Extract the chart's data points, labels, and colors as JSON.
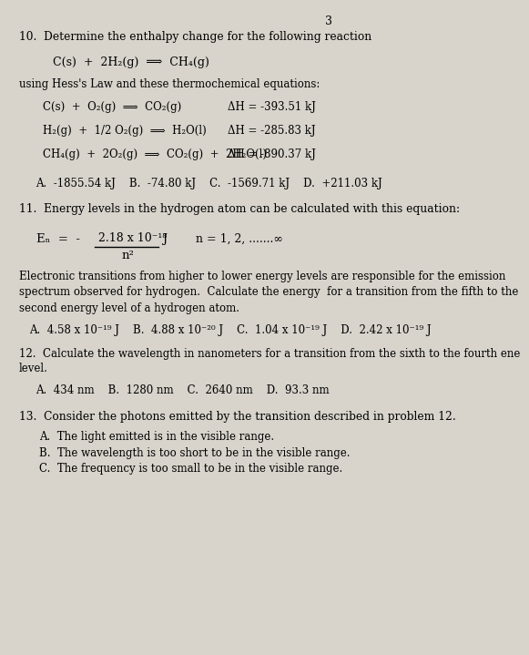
{
  "bg_color": "#d8d4cc",
  "page_num": "3",
  "q10_title": "10.  Determine the enthalpy change for the following reaction",
  "q10_reaction": "C(s)  +  2H₂(g)  ⟹  CH₄(g)",
  "q10_using": "using Hess's Law and these thermochemical equations:",
  "q10_eq1": "C(s)  +  O₂(g)  ⟹  CO₂(g)",
  "q10_eq1_dH": "ΔH = -393.51 kJ",
  "q10_eq2": "H₂(g)  +  1/2 O₂(g)  ⟹  H₂O(l)",
  "q10_eq2_dH": "ΔH = -285.83 kJ",
  "q10_eq3": "CH₄(g)  +  2O₂(g)  ⟹  CO₂(g)  +  2H₂O(l)",
  "q10_eq3_dH": "ΔH = -890.37 kJ",
  "q10_answers": "A.  -1855.54 kJ    B.  -74.80 kJ    C.  -1569.71 kJ    D.  +211.03 kJ",
  "q11_title": "11.  Energy levels in the hydrogen atom can be calculated with this equation:",
  "q11_formula_left": "Eₙ  =  -",
  "q11_formula_num": "2.18 x 10⁻¹⁸",
  "q11_formula_denom": "n²",
  "q11_formula_right": "J        n = 1, 2, .......∞",
  "q11_desc1": "Electronic transitions from higher to lower energy levels are responsible for the emission",
  "q11_desc2": "spectrum observed for hydrogen.  Calculate the energy  for a transition from the fifth to the",
  "q11_desc3": "second energy level of a hydrogen atom.",
  "q11_answers": "A.  4.58 x 10⁻¹⁹ J    B.  4.88 x 10⁻²⁰ J    C.  1.04 x 10⁻¹⁹ J    D.  2.42 x 10⁻¹⁹ J",
  "q12_title": "12.  Calculate the wavelength in nanometers for a transition from the sixth to the fourth ene",
  "q12_title2": "level.",
  "q12_answers": "A.  434 nm    B.  1280 nm    C.  2640 nm    D.  93.3 nm",
  "q13_title": "13.  Consider the photons emitted by the transition described in problem 12.",
  "q13_a": "A.  The light emitted is in the visible range.",
  "q13_b": "B.  The wavelength is too short to be in the visible range.",
  "q13_c": "C.  The frequency is too small to be in the visible range."
}
